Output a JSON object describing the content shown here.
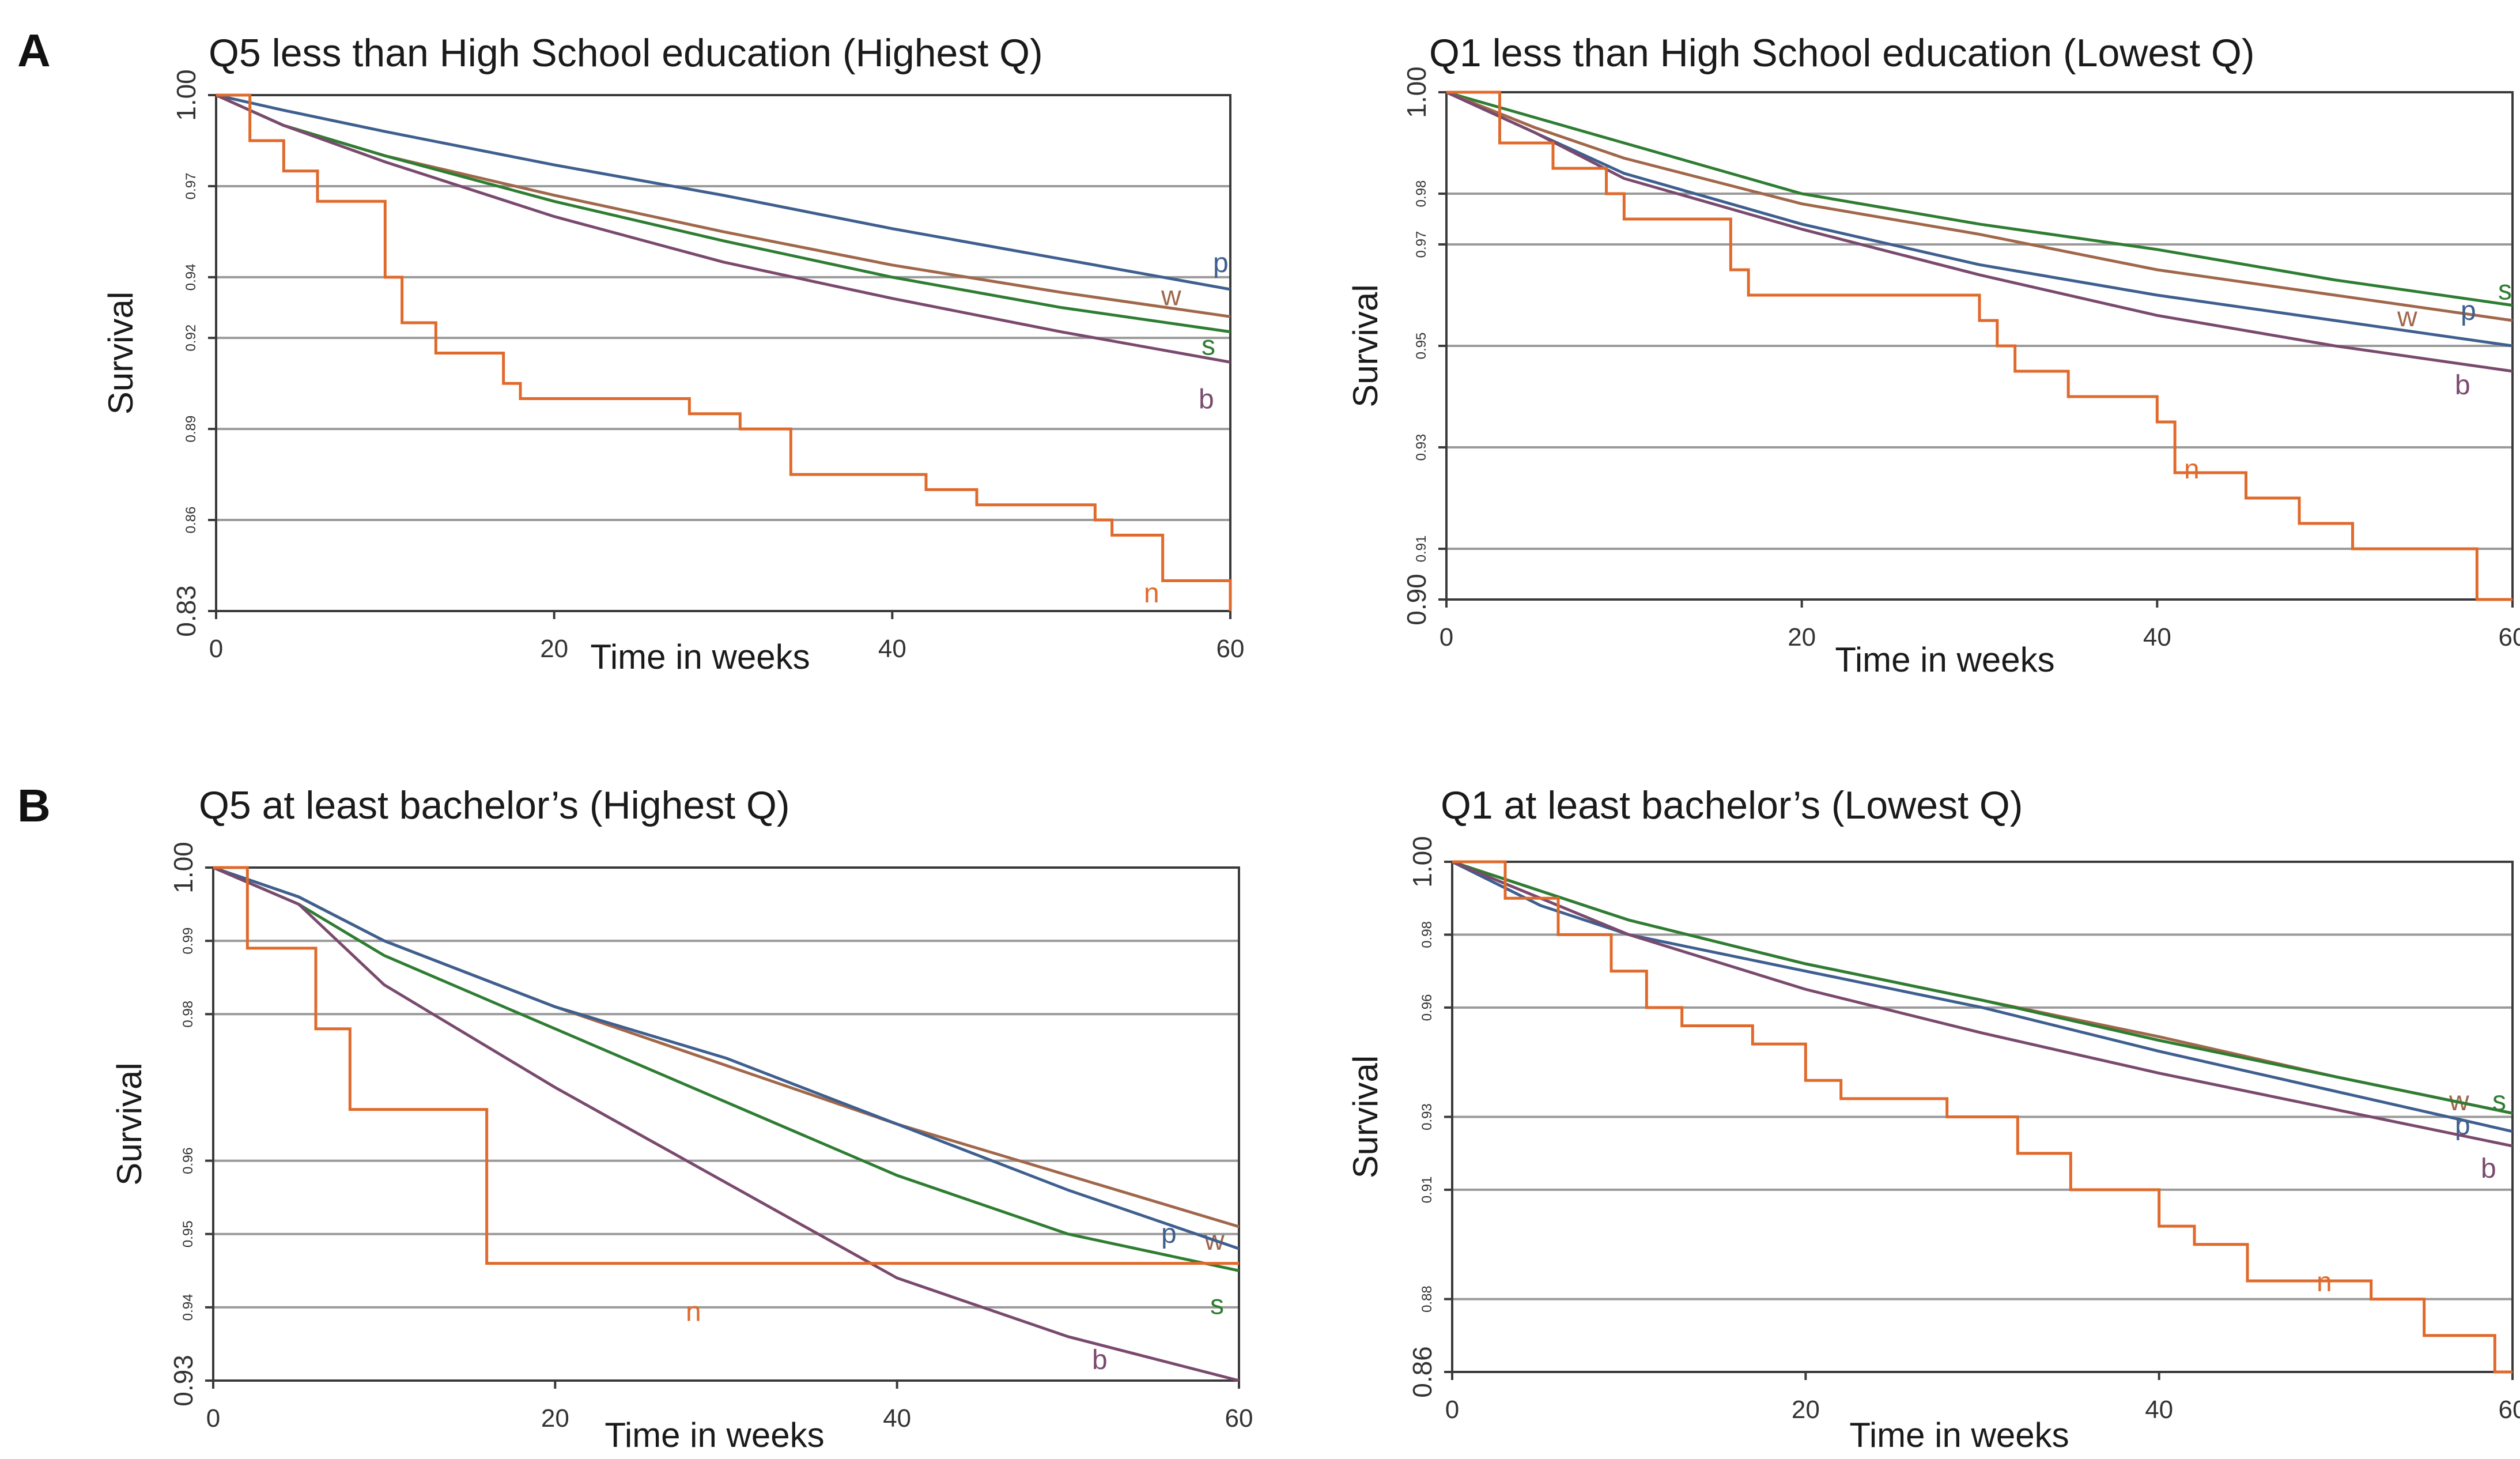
{
  "panel_labels": [
    "A",
    "B"
  ],
  "series_colors": {
    "p": "#3e5f8f",
    "w": "#a0674a",
    "s": "#2e7d32",
    "b": "#7a4a6e",
    "n": "#e06a2c"
  },
  "chart_data": [
    {
      "type": "line",
      "title": "Q5 less than High School education (Highest Q)",
      "xlabel": "Time in weeks",
      "ylabel": "Survival",
      "xlim": [
        0,
        60
      ],
      "ylim": [
        0.83,
        1.0
      ],
      "xticks": [
        0,
        20,
        40,
        60
      ],
      "xtick_labels": [
        "0",
        "20",
        "40",
        "60"
      ],
      "yticks": [
        0.83,
        0.86,
        0.89,
        0.92,
        0.94,
        0.97,
        1.0
      ],
      "ytick_labels": [
        "0.83",
        "0.86",
        "0.89",
        "0.92",
        "0.94",
        "0.97",
        "1.00"
      ],
      "grid": true,
      "series": [
        {
          "key": "p",
          "name": "p",
          "x": [
            0,
            4,
            10,
            20,
            30,
            40,
            50,
            60
          ],
          "y": [
            1.0,
            0.995,
            0.988,
            0.977,
            0.967,
            0.956,
            0.946,
            0.936
          ]
        },
        {
          "key": "w",
          "name": "w",
          "x": [
            0,
            4,
            10,
            20,
            30,
            40,
            50,
            60
          ],
          "y": [
            1.0,
            0.99,
            0.98,
            0.967,
            0.955,
            0.944,
            0.935,
            0.927
          ]
        },
        {
          "key": "s",
          "name": "s",
          "x": [
            0,
            4,
            10,
            20,
            30,
            40,
            50,
            60
          ],
          "y": [
            1.0,
            0.99,
            0.98,
            0.965,
            0.952,
            0.94,
            0.93,
            0.922
          ]
        },
        {
          "key": "b",
          "name": "b",
          "x": [
            0,
            4,
            10,
            20,
            30,
            40,
            50,
            60
          ],
          "y": [
            1.0,
            0.99,
            0.978,
            0.96,
            0.945,
            0.933,
            0.922,
            0.912
          ]
        },
        {
          "key": "n",
          "name": "n",
          "step": true,
          "x": [
            0,
            2,
            4,
            6,
            10,
            11,
            13,
            17,
            18,
            28,
            31,
            34,
            42,
            45,
            52,
            53,
            56,
            60
          ],
          "y": [
            1.0,
            0.985,
            0.975,
            0.965,
            0.94,
            0.925,
            0.915,
            0.905,
            0.9,
            0.895,
            0.89,
            0.875,
            0.87,
            0.865,
            0.86,
            0.855,
            0.84,
            0.83
          ]
        }
      ]
    },
    {
      "type": "line",
      "title": "Q1 less than High School education (Lowest Q)",
      "xlabel": "Time in weeks",
      "ylabel": "Survival",
      "xlim": [
        0,
        60
      ],
      "ylim": [
        0.9,
        1.0
      ],
      "xticks": [
        0,
        20,
        40,
        60
      ],
      "xtick_labels": [
        "0",
        "20",
        "40",
        "60"
      ],
      "yticks": [
        0.9,
        0.91,
        0.93,
        0.95,
        0.97,
        0.98,
        1.0
      ],
      "ytick_labels": [
        "0.90",
        "0.91",
        "0.93",
        "0.95",
        "0.97",
        "0.98",
        "1.00"
      ],
      "grid": true,
      "series": [
        {
          "key": "s",
          "name": "s",
          "x": [
            0,
            5,
            10,
            20,
            30,
            40,
            50,
            60
          ],
          "y": [
            1.0,
            0.995,
            0.99,
            0.98,
            0.974,
            0.969,
            0.963,
            0.958
          ]
        },
        {
          "key": "w",
          "name": "w",
          "x": [
            0,
            5,
            10,
            20,
            30,
            40,
            50,
            60
          ],
          "y": [
            1.0,
            0.993,
            0.987,
            0.978,
            0.972,
            0.965,
            0.96,
            0.955
          ]
        },
        {
          "key": "p",
          "name": "p",
          "x": [
            0,
            5,
            10,
            20,
            30,
            40,
            50,
            60
          ],
          "y": [
            1.0,
            0.992,
            0.984,
            0.974,
            0.966,
            0.96,
            0.955,
            0.95
          ]
        },
        {
          "key": "b",
          "name": "b",
          "x": [
            0,
            5,
            10,
            20,
            30,
            40,
            50,
            60
          ],
          "y": [
            1.0,
            0.992,
            0.983,
            0.973,
            0.964,
            0.956,
            0.95,
            0.945
          ]
        },
        {
          "key": "n",
          "name": "n",
          "step": true,
          "x": [
            0,
            3,
            6,
            9,
            10,
            16,
            17,
            30,
            31,
            32,
            35,
            40,
            41,
            45,
            48,
            51,
            58,
            60
          ],
          "y": [
            1.0,
            0.99,
            0.985,
            0.98,
            0.975,
            0.965,
            0.96,
            0.955,
            0.95,
            0.945,
            0.94,
            0.935,
            0.925,
            0.92,
            0.915,
            0.91,
            0.9,
            0.9
          ]
        }
      ]
    },
    {
      "type": "line",
      "title": "Q5 at least bachelor’s (Highest Q)",
      "xlabel": "Time in weeks",
      "ylabel": "Survival",
      "xlim": [
        0,
        60
      ],
      "ylim": [
        0.93,
        1.0
      ],
      "xticks": [
        0,
        20,
        40,
        60
      ],
      "xtick_labels": [
        "0",
        "20",
        "40",
        "60"
      ],
      "yticks": [
        0.93,
        0.94,
        0.95,
        0.96,
        0.98,
        0.99,
        1.0
      ],
      "ytick_labels": [
        "0.93",
        "0.94",
        "0.95",
        "0.96",
        "0.98",
        "0.99",
        "1.00"
      ],
      "grid": true,
      "series": [
        {
          "key": "w",
          "name": "w",
          "x": [
            0,
            5,
            10,
            20,
            30,
            40,
            50,
            60
          ],
          "y": [
            1.0,
            0.996,
            0.99,
            0.981,
            0.973,
            0.965,
            0.958,
            0.951
          ]
        },
        {
          "key": "p",
          "name": "p",
          "x": [
            0,
            5,
            10,
            20,
            30,
            40,
            50,
            60
          ],
          "y": [
            1.0,
            0.996,
            0.99,
            0.981,
            0.974,
            0.965,
            0.956,
            0.948
          ]
        },
        {
          "key": "s",
          "name": "s",
          "x": [
            0,
            5,
            10,
            20,
            30,
            40,
            50,
            60
          ],
          "y": [
            1.0,
            0.995,
            0.988,
            0.978,
            0.968,
            0.958,
            0.95,
            0.945
          ]
        },
        {
          "key": "b",
          "name": "b",
          "x": [
            0,
            5,
            10,
            20,
            30,
            40,
            50,
            60
          ],
          "y": [
            1.0,
            0.995,
            0.984,
            0.97,
            0.957,
            0.944,
            0.936,
            0.93
          ]
        },
        {
          "key": "n",
          "name": "n",
          "step": true,
          "x": [
            0,
            2,
            6,
            8,
            16,
            60
          ],
          "y": [
            1.0,
            0.989,
            0.978,
            0.967,
            0.946,
            0.946
          ]
        }
      ]
    },
    {
      "type": "line",
      "title": "Q1 at least bachelor’s (Lowest Q)",
      "xlabel": "Time in weeks",
      "ylabel": "Survival",
      "xlim": [
        0,
        60
      ],
      "ylim": [
        0.86,
        1.0
      ],
      "xticks": [
        0,
        20,
        40,
        60
      ],
      "xtick_labels": [
        "0",
        "20",
        "40",
        "60"
      ],
      "yticks": [
        0.86,
        0.88,
        0.91,
        0.93,
        0.96,
        0.98,
        1.0
      ],
      "ytick_labels": [
        "0.86",
        "0.88",
        "0.91",
        "0.93",
        "0.96",
        "0.98",
        "1.00"
      ],
      "grid": true,
      "series": [
        {
          "key": "w",
          "name": "w",
          "x": [
            0,
            5,
            10,
            20,
            30,
            40,
            50,
            60
          ],
          "y": [
            1.0,
            0.992,
            0.984,
            0.972,
            0.962,
            0.952,
            0.941,
            0.931
          ]
        },
        {
          "key": "s",
          "name": "s",
          "x": [
            0,
            5,
            10,
            20,
            30,
            40,
            50,
            60
          ],
          "y": [
            1.0,
            0.992,
            0.984,
            0.972,
            0.962,
            0.951,
            0.941,
            0.931
          ]
        },
        {
          "key": "p",
          "name": "p",
          "x": [
            0,
            5,
            10,
            20,
            30,
            40,
            50,
            60
          ],
          "y": [
            1.0,
            0.988,
            0.98,
            0.97,
            0.96,
            0.948,
            0.937,
            0.926
          ]
        },
        {
          "key": "b",
          "name": "b",
          "x": [
            0,
            5,
            10,
            20,
            30,
            40,
            50,
            60
          ],
          "y": [
            1.0,
            0.99,
            0.98,
            0.965,
            0.953,
            0.942,
            0.932,
            0.922
          ]
        },
        {
          "key": "n",
          "name": "n",
          "step": true,
          "x": [
            0,
            3,
            6,
            9,
            11,
            13,
            17,
            20,
            22,
            28,
            32,
            35,
            40,
            42,
            45,
            52,
            55,
            59,
            60
          ],
          "y": [
            1.0,
            0.99,
            0.98,
            0.97,
            0.96,
            0.955,
            0.95,
            0.94,
            0.935,
            0.93,
            0.92,
            0.91,
            0.9,
            0.895,
            0.885,
            0.88,
            0.87,
            0.86,
            0.86
          ]
        }
      ]
    }
  ]
}
